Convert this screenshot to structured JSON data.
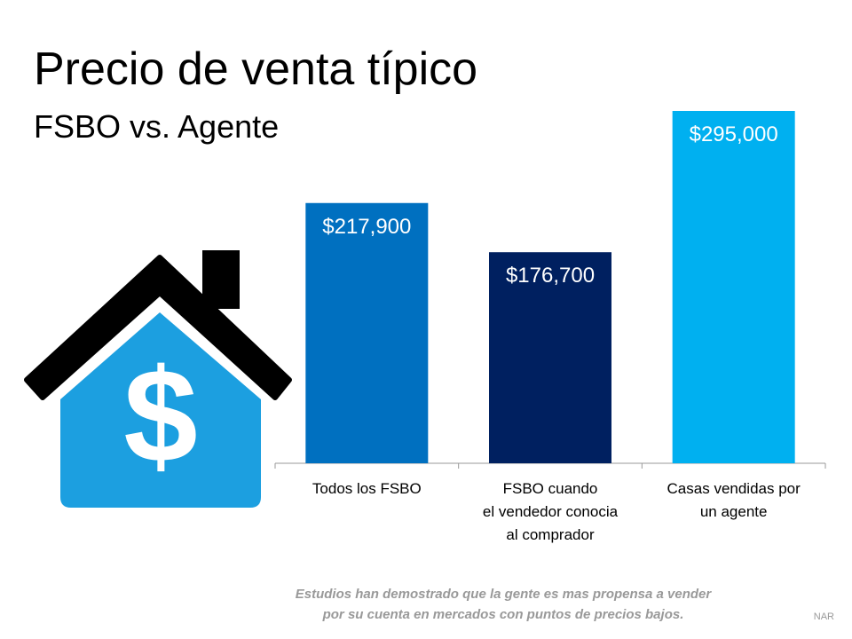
{
  "chart_data": {
    "type": "bar",
    "title": "Precio de venta típico",
    "subtitle": "FSBO vs. Agente",
    "categories": [
      [
        "Todos los FSBO"
      ],
      [
        "FSBO cuando",
        "el vendedor conocia",
        "al comprador"
      ],
      [
        "Casas vendidas por",
        "un agente"
      ]
    ],
    "values": [
      217900,
      176700,
      295000
    ],
    "value_labels": [
      "$217,900",
      "$176,700",
      "$295,000"
    ],
    "colors": [
      "#0070c0",
      "#002060",
      "#00b0f0"
    ],
    "note": [
      "Estudios han demostrado que la gente es mas propensa a vender",
      "por su cuenta en mercados con puntos de precios bajos."
    ],
    "source": "NAR"
  }
}
